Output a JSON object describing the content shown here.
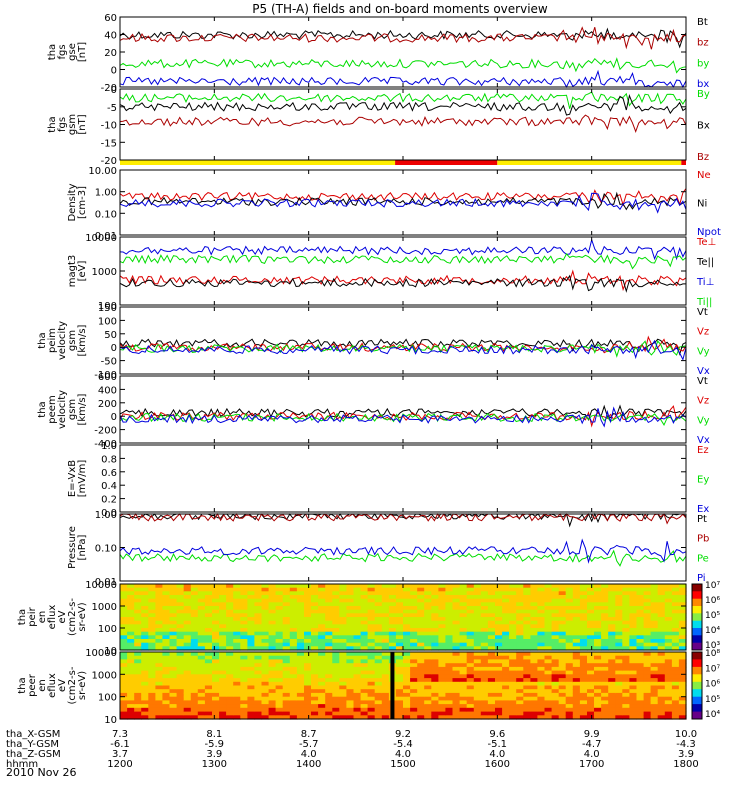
{
  "title": "P5 (TH-A) fields and on-board moments overview",
  "date": "2010 Nov 26",
  "colors": {
    "black": "#000000",
    "red": "#dd0000",
    "green": "#00dd00",
    "blue": "#0000dd",
    "darkred": "#aa0000",
    "yellow": "#ffee00",
    "barred": "#ee0000"
  },
  "ephemeris": [
    {
      "label": "tha_X-GSM",
      "values": [
        "7.3",
        "8.1",
        "8.7",
        "9.2",
        "9.6",
        "9.9",
        "10.0"
      ]
    },
    {
      "label": "tha_Y-GSM",
      "values": [
        "-6.1",
        "-5.9",
        "-5.7",
        "-5.4",
        "-5.1",
        "-4.7",
        "-4.3"
      ]
    },
    {
      "label": "tha_Z-GSM",
      "values": [
        "3.7",
        "3.9",
        "4.0",
        "4.0",
        "4.0",
        "4.0",
        "3.9"
      ]
    },
    {
      "label": "hhmm",
      "values": [
        "1200",
        "1300",
        "1400",
        "1500",
        "1600",
        "1700",
        "1800"
      ]
    }
  ],
  "chart_data": [
    {
      "type": "line",
      "ylabel": [
        "tha",
        "fgs",
        "gse",
        "[nT]"
      ],
      "yticks": [
        "60",
        "40",
        "20",
        "0",
        "-20"
      ],
      "ylim": [
        -25,
        65
      ],
      "series": [
        {
          "name": "Bt",
          "color": "black",
          "level": 42
        },
        {
          "name": "bz",
          "color": "darkred",
          "level": 38
        },
        {
          "name": "by",
          "color": "green",
          "level": 5
        },
        {
          "name": "bx",
          "color": "blue",
          "level": -18
        }
      ]
    },
    {
      "type": "line",
      "ylabel": [
        "tha",
        "fgs",
        "gsm",
        "[nT]"
      ],
      "yticks": [
        "0",
        "-5",
        "-10",
        "-15",
        "-20"
      ],
      "ylim": [
        -22,
        2
      ],
      "series": [
        {
          "name": "By",
          "color": "green",
          "level": -1
        },
        {
          "name": "Bx",
          "color": "black",
          "level": -4
        },
        {
          "name": "Bz",
          "color": "darkred",
          "level": -9
        }
      ],
      "mode_bar": {
        "segments": [
          {
            "from": "1200",
            "to": "1455",
            "color": "yellow"
          },
          {
            "from": "1455",
            "to": "1600",
            "color": "barred"
          },
          {
            "from": "1600",
            "to": "1757",
            "color": "yellow"
          },
          {
            "from": "1757",
            "to": "1800",
            "color": "barred"
          }
        ]
      }
    },
    {
      "type": "line",
      "scale": "log",
      "ylabel": [
        "Density",
        "[cm-3]"
      ],
      "yticks": [
        "10.00",
        "1.00",
        "0.10",
        "0.01"
      ],
      "ylim": [
        0.01,
        10
      ],
      "series": [
        {
          "name": "Ne",
          "color": "red",
          "level": 0.6
        },
        {
          "name": "Ni",
          "color": "black",
          "level": 0.35
        },
        {
          "name": "Npot",
          "color": "blue",
          "level": 0.3
        }
      ]
    },
    {
      "type": "line",
      "scale": "log",
      "ylabel": [
        "magt3",
        "[eV]"
      ],
      "yticks": [
        "10000",
        "1000",
        "100"
      ],
      "ylim": [
        100,
        10000
      ],
      "series": [
        {
          "name": "Te⊥",
          "color": "red",
          "level": 550
        },
        {
          "name": "Te||",
          "color": "black",
          "level": 450
        },
        {
          "name": "Ti⊥",
          "color": "blue",
          "level": 4000
        },
        {
          "name": "Ti||",
          "color": "green",
          "level": 2200
        }
      ]
    },
    {
      "type": "line",
      "ylabel": [
        "tha",
        "peim",
        "velocity",
        "gsm",
        "[km/s]"
      ],
      "yticks": [
        "150",
        "100",
        "50",
        "0",
        "-50",
        "-100"
      ],
      "ylim": [
        -100,
        150
      ],
      "series": [
        {
          "name": "Vt",
          "color": "black",
          "level": 15
        },
        {
          "name": "Vz",
          "color": "red",
          "level": 0
        },
        {
          "name": "Vy",
          "color": "green",
          "level": -5
        },
        {
          "name": "Vx",
          "color": "blue",
          "level": -10
        }
      ]
    },
    {
      "type": "line",
      "ylabel": [
        "tha",
        "peem",
        "velocity",
        "gsm",
        "[km/s]"
      ],
      "yticks": [
        "600",
        "400",
        "200",
        "0",
        "-200",
        "-400"
      ],
      "ylim": [
        -400,
        600
      ],
      "series": [
        {
          "name": "Vt",
          "color": "black",
          "level": 50
        },
        {
          "name": "Vz",
          "color": "red",
          "level": 0
        },
        {
          "name": "Vy",
          "color": "green",
          "level": -20
        },
        {
          "name": "Vx",
          "color": "blue",
          "level": -40
        }
      ]
    },
    {
      "type": "line",
      "ylabel": [
        "E=-VxB",
        "[mV/m]"
      ],
      "yticks": [
        "1.0",
        "0.8",
        "0.6",
        "0.4",
        "0.2",
        "0.0"
      ],
      "ylim": [
        0,
        1
      ],
      "series": [
        {
          "name": "Ez",
          "color": "red"
        },
        {
          "name": "Ey",
          "color": "green"
        },
        {
          "name": "Ex",
          "color": "blue"
        }
      ]
    },
    {
      "type": "line",
      "scale": "log",
      "ylabel": [
        "Pressure",
        "[nPa]"
      ],
      "yticks": [
        "1.00",
        "0.10",
        "0.01"
      ],
      "ylim": [
        0.01,
        1
      ],
      "series": [
        {
          "name": "Pt",
          "color": "black",
          "level": 0.9
        },
        {
          "name": "Pb",
          "color": "darkred",
          "level": 0.82
        },
        {
          "name": "Pe",
          "color": "green",
          "level": 0.05
        },
        {
          "name": "Pi",
          "color": "blue",
          "level": 0.08
        }
      ]
    },
    {
      "type": "heatmap",
      "ylabel": [
        "tha",
        "peir",
        "en",
        "eflux",
        "eV",
        "(cm2-s-",
        "sr-eV)"
      ],
      "yticks": [
        "10000",
        "1000",
        "100",
        "10"
      ],
      "ylim": [
        10,
        20000
      ],
      "colorbar": {
        "labels": [
          "10⁷",
          "10⁶",
          "10⁵",
          "10⁴",
          "10³"
        ]
      }
    },
    {
      "type": "heatmap",
      "ylabel": [
        "tha",
        "peer",
        "en",
        "eflux",
        "eV",
        "(cm2-s-",
        "sr-eV)"
      ],
      "yticks": [
        "10000",
        "1000",
        "100",
        "10"
      ],
      "ylim": [
        10,
        20000
      ],
      "colorbar": {
        "labels": [
          "10⁸",
          "10⁷",
          "10⁶",
          "10⁵",
          "10⁴"
        ]
      }
    }
  ]
}
